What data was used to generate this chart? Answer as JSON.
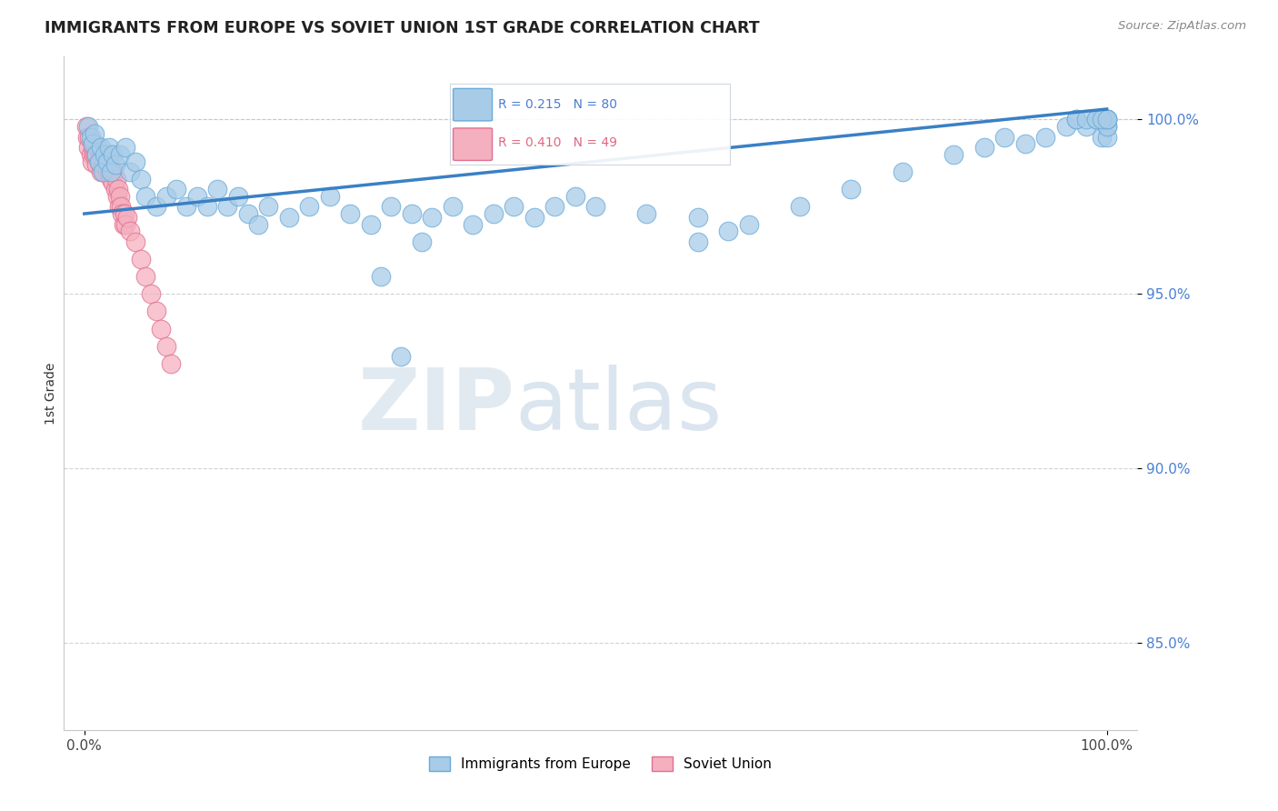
{
  "title": "IMMIGRANTS FROM EUROPE VS SOVIET UNION 1ST GRADE CORRELATION CHART",
  "source": "Source: ZipAtlas.com",
  "ylabel": "1st Grade",
  "legend_blue_label": "Immigrants from Europe",
  "legend_pink_label": "Soviet Union",
  "R_blue": 0.215,
  "N_blue": 80,
  "R_pink": 0.41,
  "N_pink": 49,
  "xlim": [
    -2.0,
    103.0
  ],
  "ylim": [
    82.5,
    101.8
  ],
  "yticks": [
    85.0,
    90.0,
    95.0,
    100.0
  ],
  "ytick_labels": [
    "85.0%",
    "90.0%",
    "95.0%",
    "100.0%"
  ],
  "xticks": [
    0.0,
    100.0
  ],
  "xtick_labels": [
    "0.0%",
    "100.0%"
  ],
  "color_blue": "#a8cce8",
  "color_blue_edge": "#6aaad8",
  "color_blue_line": "#3a80c4",
  "color_pink": "#f5b0c0",
  "color_pink_edge": "#e07090",
  "watermark_zip": "ZIP",
  "watermark_atlas": "atlas",
  "trend_x0": 0.0,
  "trend_y0": 97.3,
  "trend_x1": 100.0,
  "trend_y1": 100.3,
  "blue_x": [
    0.4,
    0.6,
    0.8,
    1.0,
    1.2,
    1.4,
    1.6,
    1.8,
    2.0,
    2.2,
    2.4,
    2.6,
    2.8,
    3.0,
    3.5,
    4.0,
    4.5,
    5.0,
    5.5,
    6.0,
    7.0,
    8.0,
    9.0,
    10.0,
    11.0,
    12.0,
    13.0,
    14.0,
    15.0,
    16.0,
    17.0,
    18.0,
    20.0,
    22.0,
    24.0,
    26.0,
    28.0,
    30.0,
    32.0,
    34.0,
    36.0,
    38.0,
    40.0,
    42.0,
    44.0,
    46.0,
    48.0,
    50.0,
    55.0,
    60.0,
    65.0,
    70.0,
    75.0,
    80.0,
    85.0,
    88.0,
    90.0,
    92.0,
    94.0,
    96.0,
    97.0,
    98.0,
    99.0,
    99.5,
    100.0,
    100.0,
    100.0,
    100.0,
    100.0,
    31.0,
    29.0,
    33.0,
    60.0,
    63.0,
    97.0,
    98.0,
    99.0,
    100.0,
    99.5,
    100.0
  ],
  "blue_y": [
    99.8,
    99.5,
    99.3,
    99.6,
    99.0,
    98.8,
    99.2,
    98.5,
    99.0,
    98.8,
    99.2,
    98.5,
    99.0,
    98.7,
    99.0,
    99.2,
    98.5,
    98.8,
    98.3,
    97.8,
    97.5,
    97.8,
    98.0,
    97.5,
    97.8,
    97.5,
    98.0,
    97.5,
    97.8,
    97.3,
    97.0,
    97.5,
    97.2,
    97.5,
    97.8,
    97.3,
    97.0,
    97.5,
    97.3,
    97.2,
    97.5,
    97.0,
    97.3,
    97.5,
    97.2,
    97.5,
    97.8,
    97.5,
    97.3,
    96.5,
    97.0,
    97.5,
    98.0,
    98.5,
    99.0,
    99.2,
    99.5,
    99.3,
    99.5,
    99.8,
    100.0,
    99.8,
    100.0,
    99.5,
    100.0,
    99.8,
    100.0,
    99.5,
    99.8,
    93.2,
    95.5,
    96.5,
    97.2,
    96.8,
    100.0,
    100.0,
    100.0,
    100.0,
    100.0,
    100.0
  ],
  "pink_x": [
    0.2,
    0.3,
    0.4,
    0.5,
    0.6,
    0.7,
    0.8,
    0.9,
    1.0,
    1.1,
    1.2,
    1.3,
    1.4,
    1.5,
    1.6,
    1.7,
    1.8,
    1.9,
    2.0,
    2.1,
    2.2,
    2.3,
    2.4,
    2.5,
    2.6,
    2.7,
    2.8,
    2.9,
    3.0,
    3.1,
    3.2,
    3.3,
    3.4,
    3.5,
    3.6,
    3.7,
    3.8,
    3.9,
    4.0,
    4.2,
    4.5,
    5.0,
    5.5,
    6.0,
    6.5,
    7.0,
    7.5,
    8.0,
    8.5
  ],
  "pink_y": [
    99.8,
    99.5,
    99.2,
    99.5,
    99.0,
    98.8,
    99.2,
    99.0,
    99.3,
    99.0,
    98.7,
    99.2,
    98.8,
    99.0,
    98.5,
    99.0,
    98.7,
    98.5,
    98.8,
    99.0,
    98.5,
    98.8,
    98.5,
    99.0,
    98.3,
    98.5,
    98.2,
    98.5,
    98.0,
    98.3,
    97.8,
    98.0,
    97.5,
    97.8,
    97.5,
    97.3,
    97.0,
    97.3,
    97.0,
    97.2,
    96.8,
    96.5,
    96.0,
    95.5,
    95.0,
    94.5,
    94.0,
    93.5,
    93.0
  ]
}
